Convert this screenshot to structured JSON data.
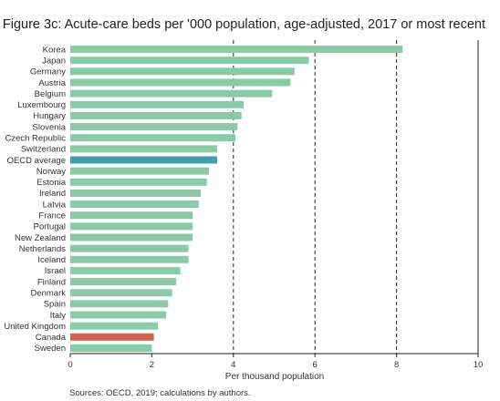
{
  "chart_data": {
    "type": "bar",
    "orientation": "horizontal",
    "title": "Figure 3c: Acute-care beds per '000 population, age-adjusted, 2017 or most recent",
    "xlabel": "Per thousand population",
    "source": "Sources: OECD, 2019; calculations by authors.",
    "xlim": [
      0,
      10
    ],
    "xticks": [
      0,
      2,
      4,
      6,
      8,
      10
    ],
    "grid": "dashed vertical at 4, 6, 8",
    "colors": {
      "default": "#88cba4",
      "oecd": "#3f9fb3",
      "canada": "#d5614f"
    },
    "categories": [
      "Korea",
      "Japan",
      "Germany",
      "Austria",
      "Belgium",
      "Luxembourg",
      "Hungary",
      "Slovenia",
      "Czech Republic",
      "Switzerland",
      "OECD average",
      "Norway",
      "Estonia",
      "Ireland",
      "Latvia",
      "France",
      "Portugal",
      "New Zealand",
      "Netherlands",
      "Iceland",
      "Israel",
      "Finland",
      "Denmark",
      "Spain",
      "Italy",
      "United Kingdom",
      "Canada",
      "Sweden"
    ],
    "values": [
      8.15,
      5.85,
      5.5,
      5.4,
      4.95,
      4.25,
      4.2,
      4.1,
      4.05,
      3.6,
      3.6,
      3.4,
      3.35,
      3.2,
      3.15,
      3.0,
      3.0,
      3.0,
      2.9,
      2.9,
      2.7,
      2.6,
      2.5,
      2.4,
      2.35,
      2.15,
      2.05,
      2.0
    ],
    "highlight": {
      "OECD average": "oecd",
      "Canada": "canada"
    }
  }
}
